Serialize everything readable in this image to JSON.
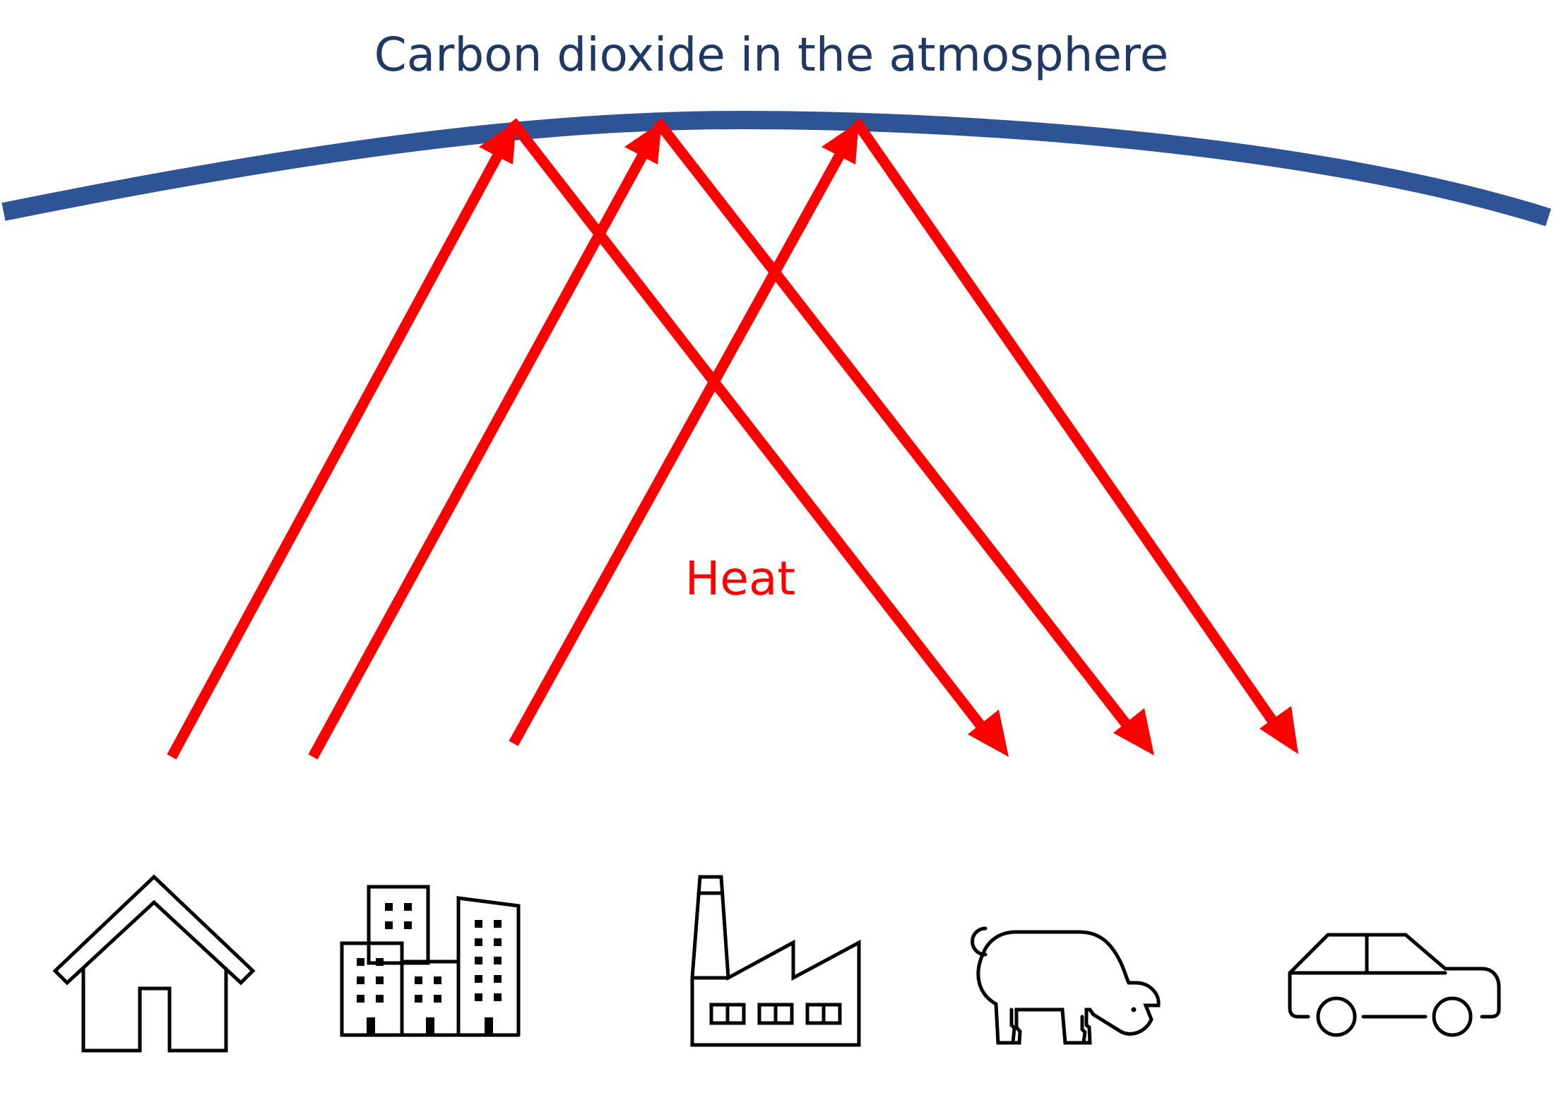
{
  "diagram": {
    "title": "Carbon dioxide in the atmosphere",
    "heat_label": "Heat",
    "colors": {
      "atmosphere": "#2f5496",
      "title": "#1f3864",
      "heat": "#ff0000",
      "icon": "#000000"
    },
    "icons": [
      "house-icon",
      "city-buildings-icon",
      "factory-icon",
      "cow-icon",
      "car-icon"
    ]
  }
}
